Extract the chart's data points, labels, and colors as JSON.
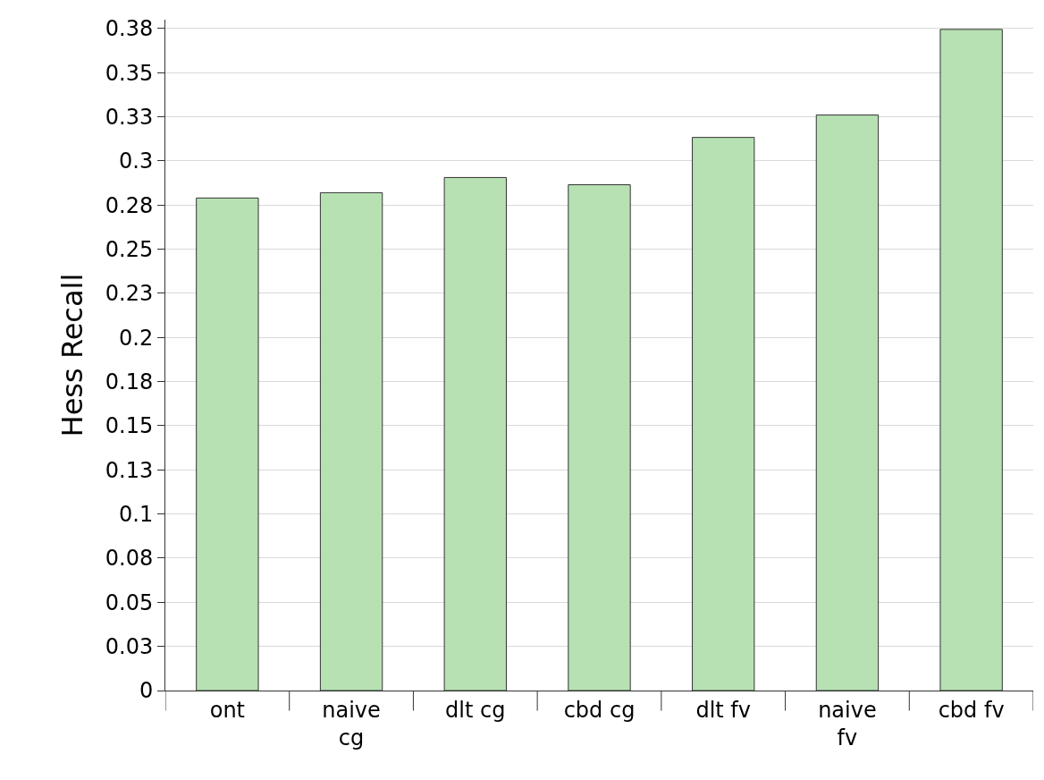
{
  "chart_data": {
    "type": "bar",
    "ylabel": "Hess Recall",
    "categories": [
      "ont",
      "naive\ncg",
      "dlt cg",
      "cbd cg",
      "dlt fv",
      "naive\nfv",
      "cbd fv"
    ],
    "values": [
      0.279,
      0.282,
      0.2906,
      0.2865,
      0.3133,
      0.326,
      0.3745
    ],
    "color": "#b7e1b3",
    "ylim": [
      0,
      0.38
    ],
    "yticks": [
      0,
      {
        "value": 0.025,
        "label": "0.03"
      },
      0.05,
      {
        "value": 0.075,
        "label": "0.08"
      },
      0.1,
      {
        "value": 0.125,
        "label": "0.13"
      },
      0.15,
      {
        "value": 0.175,
        "label": "0.18"
      },
      0.2,
      {
        "value": 0.225,
        "label": "0.23"
      },
      0.25,
      {
        "value": 0.275,
        "label": "0.28"
      },
      0.3,
      {
        "value": 0.325,
        "label": "0.33"
      },
      0.35,
      {
        "value": 0.375,
        "label": "0.38"
      }
    ],
    "grid": "y"
  }
}
